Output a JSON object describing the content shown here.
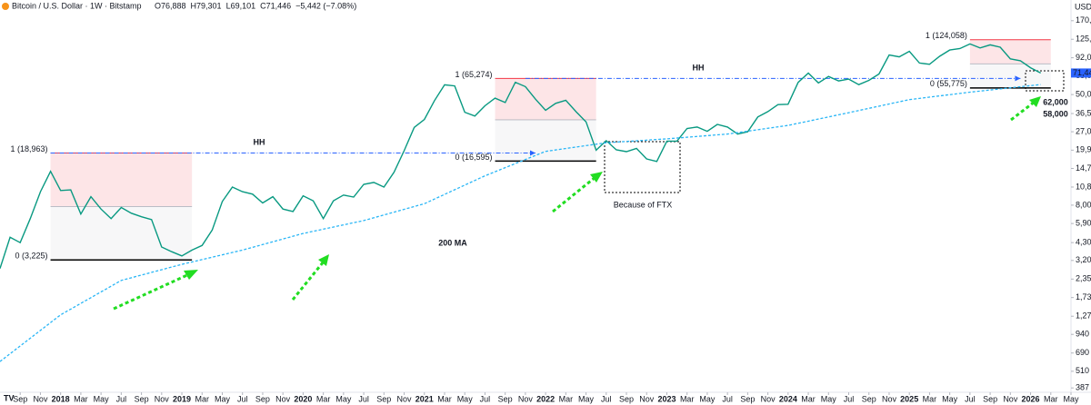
{
  "chart_data": {
    "type": "line",
    "title": "Bitcoin / U.S. Dollar · 1W · Bitstamp",
    "ohlc": [
      "O76,888",
      "H79,301",
      "L69,101",
      "C71,446",
      "−5,442 (−7.08%)"
    ],
    "currency": "USD",
    "price_tag": "71,446",
    "log_scale": true,
    "ylim": [
      360,
      200000
    ],
    "yticks": [
      {
        "value": 170000,
        "label": "170,000"
      },
      {
        "value": 125000,
        "label": "125,000"
      },
      {
        "value": 92000,
        "label": "92,000"
      },
      {
        "value": 68000,
        "label": "68,000"
      },
      {
        "value": 50000,
        "label": "50,000"
      },
      {
        "value": 36500,
        "label": "36,500"
      },
      {
        "value": 27000,
        "label": "27,000"
      },
      {
        "value": 19900,
        "label": "19,900"
      },
      {
        "value": 14700,
        "label": "14,700"
      },
      {
        "value": 10800,
        "label": "10,800"
      },
      {
        "value": 8000,
        "label": "8,000"
      },
      {
        "value": 5900,
        "label": "5,900"
      },
      {
        "value": 4300,
        "label": "4,300"
      },
      {
        "value": 3200,
        "label": "3,200"
      },
      {
        "value": 2350,
        "label": "2,350"
      },
      {
        "value": 1730,
        "label": "1,730"
      },
      {
        "value": 1270,
        "label": "1,270"
      },
      940,
      690,
      510,
      387
    ],
    "xlim": [
      "2017-07",
      "2026-05"
    ],
    "xticks": [
      {
        "value": "2017-09",
        "label": "Sep"
      },
      {
        "value": "2017-11",
        "label": "Nov"
      },
      {
        "value": "2018-01",
        "label": "2018"
      },
      {
        "value": "2018-03",
        "label": "Mar"
      },
      {
        "value": "2018-05",
        "label": "May"
      },
      {
        "value": "2018-07",
        "label": "Jul"
      },
      {
        "value": "2018-09",
        "label": "Sep"
      },
      {
        "value": "2018-11",
        "label": "Nov"
      },
      {
        "value": "2019-01",
        "label": "2019"
      },
      {
        "value": "2019-03",
        "label": "Mar"
      },
      {
        "value": "2019-05",
        "label": "May"
      },
      {
        "value": "2019-07",
        "label": "Jul"
      },
      {
        "value": "2019-09",
        "label": "Sep"
      },
      {
        "value": "2019-11",
        "label": "Nov"
      },
      {
        "value": "2020-01",
        "label": "2020"
      },
      {
        "value": "2020-03",
        "label": "Mar"
      },
      {
        "value": "2020-05",
        "label": "May"
      },
      {
        "value": "2020-07",
        "label": "Jul"
      },
      {
        "value": "2020-09",
        "label": "Sep"
      },
      {
        "value": "2020-11",
        "label": "Nov"
      },
      {
        "value": "2021-01",
        "label": "2021"
      },
      {
        "value": "2021-03",
        "label": "Mar"
      },
      {
        "value": "2021-05",
        "label": "May"
      },
      {
        "value": "2021-07",
        "label": "Jul"
      },
      {
        "value": "2021-09",
        "label": "Sep"
      },
      {
        "value": "2021-11",
        "label": "Nov"
      },
      {
        "value": "2022-01",
        "label": "2022"
      },
      {
        "value": "2022-03",
        "label": "Mar"
      },
      {
        "value": "2022-05",
        "label": "May"
      },
      {
        "value": "2022-07",
        "label": "Jul"
      },
      {
        "value": "2022-09",
        "label": "Sep"
      },
      {
        "value": "2022-11",
        "label": "Nov"
      },
      {
        "value": "2023-01",
        "label": "2023"
      },
      {
        "value": "2023-03",
        "label": "Mar"
      },
      {
        "value": "2023-05",
        "label": "May"
      },
      {
        "value": "2023-07",
        "label": "Jul"
      },
      {
        "value": "2023-09",
        "label": "Sep"
      },
      {
        "value": "2023-11",
        "label": "Nov"
      },
      {
        "value": "2024-01",
        "label": "2024"
      },
      {
        "value": "2024-03",
        "label": "Mar"
      },
      {
        "value": "2024-05",
        "label": "May"
      },
      {
        "value": "2024-07",
        "label": "Jul"
      },
      {
        "value": "2024-09",
        "label": "Sep"
      },
      {
        "value": "2024-11",
        "label": "Nov"
      },
      {
        "value": "2025-01",
        "label": "2025"
      },
      {
        "value": "2025-03",
        "label": "Mar"
      },
      {
        "value": "2025-05",
        "label": "May"
      },
      {
        "value": "2025-07",
        "label": "Jul"
      },
      {
        "value": "2025-09",
        "label": "Sep"
      },
      {
        "value": "2025-11",
        "label": "Nov"
      },
      {
        "value": "2026-01",
        "label": "2026"
      },
      {
        "value": "2026-03",
        "label": "Mar"
      },
      {
        "value": "2026-05",
        "label": "May"
      }
    ],
    "series": [
      {
        "name": "BTCUSD",
        "color": "#089981",
        "x": [
          "2017-07",
          "2017-08",
          "2017-09",
          "2017-10",
          "2017-11",
          "2017-12",
          "2018-01",
          "2018-02",
          "2018-03",
          "2018-04",
          "2018-05",
          "2018-06",
          "2018-07",
          "2018-08",
          "2018-09",
          "2018-10",
          "2018-11",
          "2018-12",
          "2019-01",
          "2019-02",
          "2019-03",
          "2019-04",
          "2019-05",
          "2019-06",
          "2019-07",
          "2019-08",
          "2019-09",
          "2019-10",
          "2019-11",
          "2019-12",
          "2020-01",
          "2020-02",
          "2020-03",
          "2020-04",
          "2020-05",
          "2020-06",
          "2020-07",
          "2020-08",
          "2020-09",
          "2020-10",
          "2020-11",
          "2020-12",
          "2021-01",
          "2021-02",
          "2021-03",
          "2021-04",
          "2021-05",
          "2021-06",
          "2021-07",
          "2021-08",
          "2021-09",
          "2021-10",
          "2021-11",
          "2021-12",
          "2022-01",
          "2022-02",
          "2022-03",
          "2022-04",
          "2022-05",
          "2022-06",
          "2022-07",
          "2022-08",
          "2022-09",
          "2022-10",
          "2022-11",
          "2022-12",
          "2023-01",
          "2023-02",
          "2023-03",
          "2023-04",
          "2023-05",
          "2023-06",
          "2023-07",
          "2023-08",
          "2023-09",
          "2023-10",
          "2023-11",
          "2023-12",
          "2024-01",
          "2024-02",
          "2024-03",
          "2024-04",
          "2024-05",
          "2024-06",
          "2024-07",
          "2024-08",
          "2024-09",
          "2024-10",
          "2024-11",
          "2024-12",
          "2025-01",
          "2025-02",
          "2025-03",
          "2025-04",
          "2025-05",
          "2025-06",
          "2025-07",
          "2025-08",
          "2025-09",
          "2025-10",
          "2025-11",
          "2025-12",
          "2026-01",
          "2026-02"
        ],
        "values": [
          2800,
          4700,
          4300,
          6400,
          10000,
          14000,
          10200,
          10300,
          6900,
          9200,
          7500,
          6400,
          7700,
          7000,
          6600,
          6300,
          4000,
          3700,
          3450,
          3800,
          4100,
          5300,
          8500,
          10800,
          10000,
          9600,
          8300,
          9200,
          7500,
          7200,
          9350,
          8600,
          6400,
          8600,
          9450,
          9150,
          11300,
          11650,
          10800,
          13800,
          19700,
          29000,
          33100,
          45200,
          58800,
          57700,
          37300,
          35000,
          41500,
          47100,
          43800,
          61300,
          57000,
          46300,
          38500,
          43200,
          45500,
          37700,
          31800,
          19900,
          23300,
          20000,
          19400,
          20500,
          17200,
          16500,
          23100,
          23100,
          28500,
          29200,
          27200,
          30500,
          29200,
          26000,
          27000,
          34500,
          37700,
          42300,
          42600,
          61200,
          71300,
          60600,
          67500,
          62700,
          64600,
          58900,
          63300,
          70300,
          96400,
          93400,
          102400,
          84300,
          82500,
          94200,
          104600,
          107100,
          115700,
          108200,
          114000,
          109500,
          90400,
          87500,
          78000,
          71446
        ]
      },
      {
        "name": "200 MA",
        "color": "#29b6f6",
        "x": [
          "2017-07",
          "2018-01",
          "2018-07",
          "2019-01",
          "2019-07",
          "2020-01",
          "2020-07",
          "2021-01",
          "2021-07",
          "2022-01",
          "2022-07",
          "2023-01",
          "2023-07",
          "2024-01",
          "2024-07",
          "2025-01",
          "2025-07",
          "2026-01",
          "2026-02"
        ],
        "values": [
          600,
          1300,
          2300,
          3000,
          3800,
          5000,
          6200,
          8200,
          13000,
          19500,
          22500,
          24000,
          26000,
          30000,
          37000,
          46000,
          52000,
          58000,
          59000
        ]
      }
    ],
    "fib_boxes": [
      {
        "start": "2017-12",
        "end": "2019-02",
        "high": {
          "value": 18963,
          "label": "1 (18,963)"
        },
        "low": {
          "value": 3225,
          "label": "0 (3,225)"
        }
      },
      {
        "start": "2021-08",
        "end": "2022-06",
        "high": {
          "value": 65274,
          "label": "1 (65,274)"
        },
        "low": {
          "value": 16595,
          "label": "0 (16,595)"
        }
      },
      {
        "start": "2025-07",
        "end": "2026-03",
        "high": {
          "value": 124058,
          "label": "1 (124,058)"
        },
        "low": {
          "value": 55775,
          "label": "0 (55,775)"
        }
      }
    ],
    "hh_lines": [
      {
        "value": 18963,
        "start": "2017-12",
        "end": "2021-12"
      },
      {
        "value": 65274,
        "start": "2021-11",
        "end": "2025-12"
      }
    ],
    "annotations": [
      "HH",
      "HH",
      "200 MA",
      "Because of FTX",
      "62,000",
      "58,000"
    ]
  }
}
